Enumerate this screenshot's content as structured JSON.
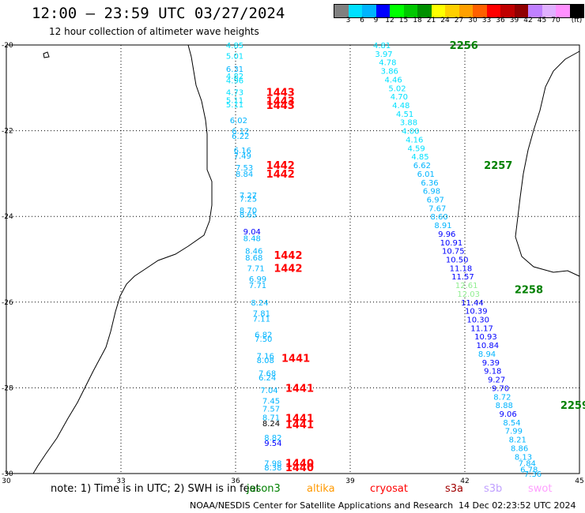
{
  "title": "12:00 – 23:59 UTC 03/27/2024",
  "subtitle": "12 hour collection of altimeter wave heights",
  "color_scale": {
    "unit": "(ft)",
    "labels": [
      "3",
      "6",
      "9",
      "12",
      "15",
      "18",
      "21",
      "24",
      "27",
      "30",
      "33",
      "36",
      "39",
      "42",
      "45",
      "70"
    ],
    "colors": [
      "#808080",
      "#00e0ff",
      "#00b4ff",
      "#0000ff",
      "#00ff00",
      "#00c800",
      "#009000",
      "#ffff00",
      "#ffd000",
      "#ffa000",
      "#ff6000",
      "#ff0000",
      "#c00000",
      "#900000",
      "#c080ff",
      "#e0b0ff",
      "#ff90ff",
      "#000000"
    ]
  },
  "axes": {
    "lon_labels": [
      "30",
      "33",
      "36",
      "39",
      "42",
      "45"
    ],
    "lon_values": [
      30,
      33,
      36,
      39,
      42,
      45
    ],
    "lat_labels": [
      "-20",
      "-22",
      "-24",
      "-26",
      "-28",
      "-30"
    ],
    "lat_values": [
      -20,
      -22,
      -24,
      -26,
      -28,
      -30
    ]
  },
  "footer": {
    "note": "note:  1) Time is in UTC; 2) SWH is in feet",
    "satellites": [
      {
        "name": "jason3",
        "color": "#008000"
      },
      {
        "name": "altika",
        "color": "#ff9900"
      },
      {
        "name": "cryosat",
        "color": "#ff0000"
      },
      {
        "name": "s3a",
        "color": "#a00000"
      },
      {
        "name": "s3b",
        "color": "#c0a0ff"
      },
      {
        "name": "swot",
        "color": "#ffa0ff"
      }
    ],
    "credit": "NOAA/NESDIS Center for Satellite Applications and Research",
    "timestamp": "14 Dec 02:23:52 UTC 2024"
  },
  "track_time_labels": [
    {
      "text": "2256",
      "lon": 41.6,
      "lat": -20.0,
      "color": "#008000"
    },
    {
      "text": "2257",
      "lon": 42.5,
      "lat": -22.8,
      "color": "#008000"
    },
    {
      "text": "2258",
      "lon": 43.3,
      "lat": -25.7,
      "color": "#008000"
    },
    {
      "text": "2259",
      "lon": 44.5,
      "lat": -28.4,
      "color": "#008000"
    },
    {
      "text": "1443",
      "lon": 36.8,
      "lat": -21.1,
      "color": "#ff0000"
    },
    {
      "text": "1443",
      "lon": 36.8,
      "lat": -21.3,
      "color": "#ff0000"
    },
    {
      "text": "1443",
      "lon": 36.8,
      "lat": -21.4,
      "color": "#ff0000"
    },
    {
      "text": "1442",
      "lon": 36.8,
      "lat": -22.8,
      "color": "#ff0000"
    },
    {
      "text": "1442",
      "lon": 36.8,
      "lat": -23.0,
      "color": "#ff0000"
    },
    {
      "text": "1442",
      "lon": 37.0,
      "lat": -24.9,
      "color": "#ff0000"
    },
    {
      "text": "1442",
      "lon": 37.0,
      "lat": -25.2,
      "color": "#ff0000"
    },
    {
      "text": "1441",
      "lon": 37.2,
      "lat": -27.3,
      "color": "#ff0000"
    },
    {
      "text": "1441",
      "lon": 37.3,
      "lat": -28.0,
      "color": "#ff0000"
    },
    {
      "text": "1441",
      "lon": 37.3,
      "lat": -28.7,
      "color": "#ff0000"
    },
    {
      "text": "1441",
      "lon": 37.3,
      "lat": -28.85,
      "color": "#ff0000"
    },
    {
      "text": "1440",
      "lon": 37.3,
      "lat": -29.75,
      "color": "#ff0000"
    },
    {
      "text": "1440",
      "lon": 37.3,
      "lat": -29.85,
      "color": "#ff0000"
    }
  ],
  "swh_points": [
    {
      "v": "4.85",
      "lon": 35.75,
      "lat": -20.0,
      "color": "#00e0ff"
    },
    {
      "v": "5.01",
      "lon": 35.75,
      "lat": -20.25,
      "color": "#00e0ff"
    },
    {
      "v": "6.31",
      "lon": 35.75,
      "lat": -20.55,
      "color": "#00b4ff"
    },
    {
      "v": "4.82",
      "lon": 35.75,
      "lat": -20.72,
      "color": "#00e0ff"
    },
    {
      "v": "4.96",
      "lon": 35.75,
      "lat": -20.82,
      "color": "#00e0ff"
    },
    {
      "v": "4.73",
      "lon": 35.75,
      "lat": -21.1,
      "color": "#00e0ff"
    },
    {
      "v": "5.11",
      "lon": 35.75,
      "lat": -21.28,
      "color": "#00e0ff"
    },
    {
      "v": "5.11",
      "lon": 35.75,
      "lat": -21.38,
      "color": "#00e0ff"
    },
    {
      "v": "6.02",
      "lon": 35.85,
      "lat": -21.75,
      "color": "#00b4ff"
    },
    {
      "v": "6.12",
      "lon": 35.9,
      "lat": -22.0,
      "color": "#00b4ff"
    },
    {
      "v": "6.22",
      "lon": 35.9,
      "lat": -22.12,
      "color": "#00b4ff"
    },
    {
      "v": "6.16",
      "lon": 35.95,
      "lat": -22.45,
      "color": "#00b4ff"
    },
    {
      "v": "7.49",
      "lon": 35.95,
      "lat": -22.58,
      "color": "#00b4ff"
    },
    {
      "v": "7.53",
      "lon": 36.0,
      "lat": -22.85,
      "color": "#00b4ff"
    },
    {
      "v": "8.84",
      "lon": 36.0,
      "lat": -23.0,
      "color": "#00b4ff"
    },
    {
      "v": "7.27",
      "lon": 36.1,
      "lat": -23.5,
      "color": "#00b4ff"
    },
    {
      "v": "7.25",
      "lon": 36.1,
      "lat": -23.58,
      "color": "#00b4ff"
    },
    {
      "v": "8.70",
      "lon": 36.1,
      "lat": -23.85,
      "color": "#00b4ff"
    },
    {
      "v": "8.65",
      "lon": 36.1,
      "lat": -23.95,
      "color": "#00b4ff"
    },
    {
      "v": "9.04",
      "lon": 36.2,
      "lat": -24.35,
      "color": "#0000ff"
    },
    {
      "v": "8.48",
      "lon": 36.2,
      "lat": -24.5,
      "color": "#00b4ff"
    },
    {
      "v": "8.46",
      "lon": 36.25,
      "lat": -24.8,
      "color": "#00b4ff"
    },
    {
      "v": "8.68",
      "lon": 36.25,
      "lat": -24.95,
      "color": "#00b4ff"
    },
    {
      "v": "7.71",
      "lon": 36.3,
      "lat": -25.2,
      "color": "#00b4ff"
    },
    {
      "v": "6.99",
      "lon": 36.35,
      "lat": -25.45,
      "color": "#00b4ff"
    },
    {
      "v": "7.71",
      "lon": 36.35,
      "lat": -25.6,
      "color": "#00b4ff"
    },
    {
      "v": "8.24",
      "lon": 36.4,
      "lat": -26.0,
      "color": "#00b4ff"
    },
    {
      "v": "7.81",
      "lon": 36.45,
      "lat": -26.25,
      "color": "#00b4ff"
    },
    {
      "v": "7.11",
      "lon": 36.45,
      "lat": -26.38,
      "color": "#00b4ff"
    },
    {
      "v": "6.82",
      "lon": 36.5,
      "lat": -26.75,
      "color": "#00b4ff"
    },
    {
      "v": "7.50",
      "lon": 36.5,
      "lat": -26.85,
      "color": "#00b4ff"
    },
    {
      "v": "7.16",
      "lon": 36.55,
      "lat": -27.25,
      "color": "#00b4ff"
    },
    {
      "v": "8.08",
      "lon": 36.55,
      "lat": -27.35,
      "color": "#00b4ff"
    },
    {
      "v": "7.68",
      "lon": 36.6,
      "lat": -27.65,
      "color": "#00b4ff"
    },
    {
      "v": "6.24",
      "lon": 36.6,
      "lat": -27.75,
      "color": "#00b4ff"
    },
    {
      "v": "7.04",
      "lon": 36.65,
      "lat": -28.05,
      "color": "#00b4ff"
    },
    {
      "v": "7.45",
      "lon": 36.7,
      "lat": -28.3,
      "color": "#00b4ff"
    },
    {
      "v": "7.57",
      "lon": 36.7,
      "lat": -28.48,
      "color": "#00b4ff"
    },
    {
      "v": "8.71",
      "lon": 36.7,
      "lat": -28.68,
      "color": "#00b4ff"
    },
    {
      "v": "8.24",
      "lon": 36.7,
      "lat": -28.82,
      "color": "#000000"
    },
    {
      "v": "8.82",
      "lon": 36.75,
      "lat": -29.15,
      "color": "#00b4ff"
    },
    {
      "v": "9.54",
      "lon": 36.75,
      "lat": -29.28,
      "color": "#0000ff"
    },
    {
      "v": "7.98",
      "lon": 36.75,
      "lat": -29.75,
      "color": "#00b4ff"
    },
    {
      "v": "8.38",
      "lon": 36.75,
      "lat": -29.85,
      "color": "#00b4ff"
    },
    {
      "v": "4.81",
      "lon": 39.6,
      "lat": -20.0,
      "color": "#00e0ff"
    },
    {
      "v": "3.97",
      "lon": 39.65,
      "lat": -20.2,
      "color": "#00e0ff"
    },
    {
      "v": "4.78",
      "lon": 39.75,
      "lat": -20.4,
      "color": "#00e0ff"
    },
    {
      "v": "3.86",
      "lon": 39.8,
      "lat": -20.6,
      "color": "#00e0ff"
    },
    {
      "v": "4.46",
      "lon": 39.9,
      "lat": -20.8,
      "color": "#00e0ff"
    },
    {
      "v": "5.02",
      "lon": 40.0,
      "lat": -21.0,
      "color": "#00e0ff"
    },
    {
      "v": "4.70",
      "lon": 40.05,
      "lat": -21.2,
      "color": "#00e0ff"
    },
    {
      "v": "4.48",
      "lon": 40.1,
      "lat": -21.4,
      "color": "#00e0ff"
    },
    {
      "v": "4.51",
      "lon": 40.2,
      "lat": -21.6,
      "color": "#00e0ff"
    },
    {
      "v": "3.88",
      "lon": 40.3,
      "lat": -21.8,
      "color": "#00e0ff"
    },
    {
      "v": "4.00",
      "lon": 40.35,
      "lat": -22.0,
      "color": "#00e0ff"
    },
    {
      "v": "4.16",
      "lon": 40.45,
      "lat": -22.2,
      "color": "#00e0ff"
    },
    {
      "v": "4.59",
      "lon": 40.5,
      "lat": -22.4,
      "color": "#00e0ff"
    },
    {
      "v": "4.85",
      "lon": 40.6,
      "lat": -22.6,
      "color": "#00e0ff"
    },
    {
      "v": "6.62",
      "lon": 40.65,
      "lat": -22.8,
      "color": "#00b4ff"
    },
    {
      "v": "6.01",
      "lon": 40.75,
      "lat": -23.0,
      "color": "#00b4ff"
    },
    {
      "v": "6.36",
      "lon": 40.85,
      "lat": -23.2,
      "color": "#00b4ff"
    },
    {
      "v": "6.98",
      "lon": 40.9,
      "lat": -23.4,
      "color": "#00b4ff"
    },
    {
      "v": "6.97",
      "lon": 41.0,
      "lat": -23.6,
      "color": "#00b4ff"
    },
    {
      "v": "7.67",
      "lon": 41.05,
      "lat": -23.8,
      "color": "#00b4ff"
    },
    {
      "v": "8.60",
      "lon": 41.1,
      "lat": -24.0,
      "color": "#00b4ff"
    },
    {
      "v": "8.91",
      "lon": 41.2,
      "lat": -24.2,
      "color": "#00b4ff"
    },
    {
      "v": "9.96",
      "lon": 41.3,
      "lat": -24.4,
      "color": "#0000ff"
    },
    {
      "v": "10.91",
      "lon": 41.35,
      "lat": -24.6,
      "color": "#0000ff"
    },
    {
      "v": "10.75",
      "lon": 41.4,
      "lat": -24.8,
      "color": "#0000ff"
    },
    {
      "v": "10.50",
      "lon": 41.5,
      "lat": -25.0,
      "color": "#0000ff"
    },
    {
      "v": "11.18",
      "lon": 41.6,
      "lat": -25.2,
      "color": "#0000ff"
    },
    {
      "v": "11.57",
      "lon": 41.65,
      "lat": -25.4,
      "color": "#0000ff"
    },
    {
      "v": "12.61",
      "lon": 41.75,
      "lat": -25.6,
      "color": "#90ee90"
    },
    {
      "v": "12.03",
      "lon": 41.8,
      "lat": -25.8,
      "color": "#90ee90"
    },
    {
      "v": "11.44",
      "lon": 41.9,
      "lat": -26.0,
      "color": "#0000ff"
    },
    {
      "v": "10.39",
      "lon": 42.0,
      "lat": -26.2,
      "color": "#0000ff"
    },
    {
      "v": "10.30",
      "lon": 42.05,
      "lat": -26.4,
      "color": "#0000ff"
    },
    {
      "v": "11.17",
      "lon": 42.15,
      "lat": -26.6,
      "color": "#0000ff"
    },
    {
      "v": "10.93",
      "lon": 42.25,
      "lat": -26.8,
      "color": "#0000ff"
    },
    {
      "v": "10.84",
      "lon": 42.3,
      "lat": -27.0,
      "color": "#0000ff"
    },
    {
      "v": "8.94",
      "lon": 42.35,
      "lat": -27.2,
      "color": "#00b4ff"
    },
    {
      "v": "9.39",
      "lon": 42.45,
      "lat": -27.4,
      "color": "#0000ff"
    },
    {
      "v": "9.18",
      "lon": 42.5,
      "lat": -27.6,
      "color": "#0000ff"
    },
    {
      "v": "9.27",
      "lon": 42.6,
      "lat": -27.8,
      "color": "#0000ff"
    },
    {
      "v": "9.70",
      "lon": 42.7,
      "lat": -28.0,
      "color": "#0000ff"
    },
    {
      "v": "8.72",
      "lon": 42.75,
      "lat": -28.2,
      "color": "#00b4ff"
    },
    {
      "v": "8.88",
      "lon": 42.8,
      "lat": -28.4,
      "color": "#00b4ff"
    },
    {
      "v": "9.06",
      "lon": 42.9,
      "lat": -28.6,
      "color": "#0000ff"
    },
    {
      "v": "8.54",
      "lon": 43.0,
      "lat": -28.8,
      "color": "#00b4ff"
    },
    {
      "v": "7.99",
      "lon": 43.05,
      "lat": -29.0,
      "color": "#00b4ff"
    },
    {
      "v": "8.21",
      "lon": 43.15,
      "lat": -29.2,
      "color": "#00b4ff"
    },
    {
      "v": "8.86",
      "lon": 43.2,
      "lat": -29.4,
      "color": "#00b4ff"
    },
    {
      "v": "8.13",
      "lon": 43.3,
      "lat": -29.6,
      "color": "#00b4ff"
    },
    {
      "v": "7.84",
      "lon": 43.4,
      "lat": -29.75,
      "color": "#00b4ff"
    },
    {
      "v": "6.78",
      "lon": 43.45,
      "lat": -29.9,
      "color": "#00b4ff"
    },
    {
      "v": "7.36",
      "lon": 43.55,
      "lat": -30.0,
      "color": "#00b4ff"
    }
  ]
}
